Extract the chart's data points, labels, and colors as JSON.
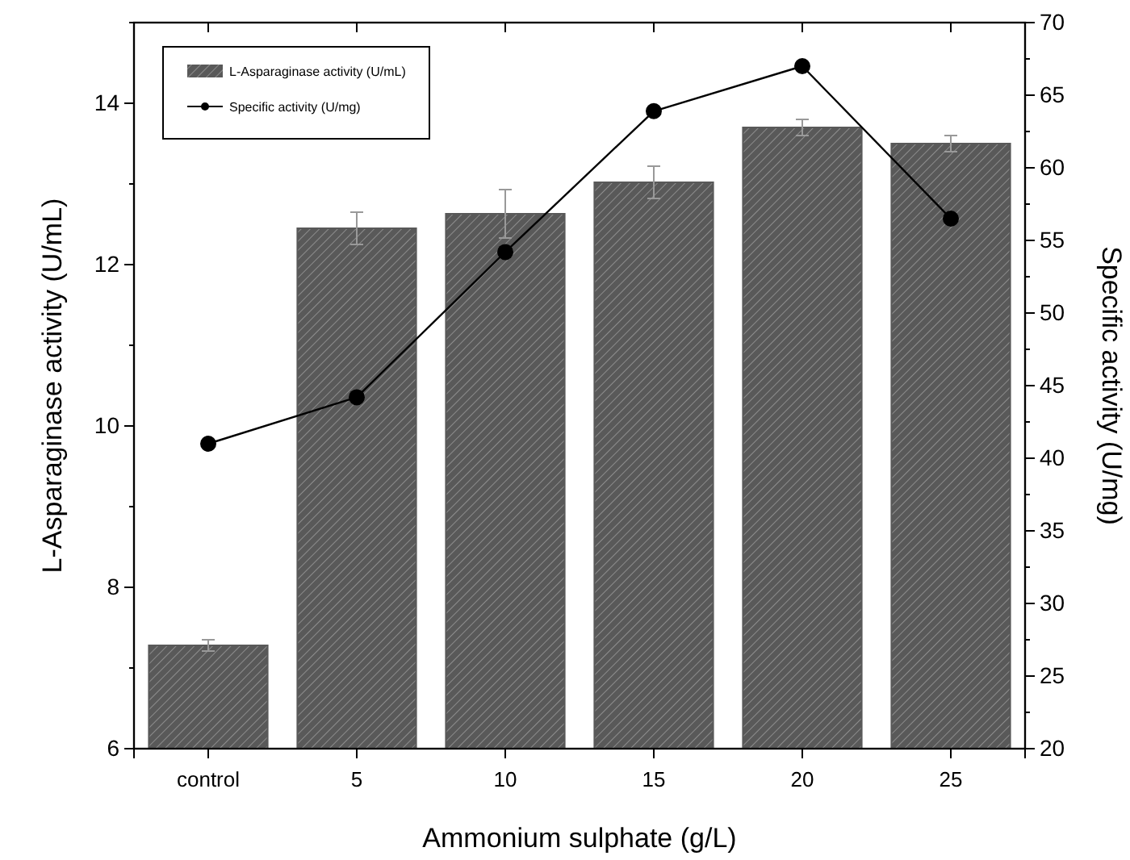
{
  "chart_data": {
    "type": "bar",
    "xlabel": "Ammonium sulphate (g/L)",
    "ylabel": "L-Asparaginase activity (U/mL)",
    "y2label": "Specific activity (U/mg)",
    "categories": [
      "control",
      "5",
      "10",
      "15",
      "20",
      "25"
    ],
    "series": [
      {
        "name": "L-Asparaginase activity (U/mL)",
        "color": "#595959",
        "values": [
          7.28,
          12.45,
          12.63,
          13.02,
          13.7,
          13.5
        ],
        "errors": [
          0.07,
          0.2,
          0.3,
          0.2,
          0.1,
          0.1
        ]
      },
      {
        "name": "Specific activity (U/mg)",
        "type": "line",
        "axis": "y2",
        "color": "#000000",
        "marker": "circle",
        "values": [
          41,
          44.2,
          54.2,
          63.9,
          67,
          56.5
        ]
      }
    ],
    "ylim": [
      6,
      15
    ],
    "yticks": [
      6,
      {
        "value": 7,
        "label": null
      },
      8,
      {
        "value": 9,
        "label": null
      },
      10,
      {
        "value": 11,
        "label": null
      },
      12,
      {
        "value": 13,
        "label": null
      },
      14,
      {
        "value": 15,
        "label": null
      }
    ],
    "y2lim": [
      20,
      70
    ],
    "y2ticks": [
      20,
      {
        "value": 22.5,
        "label": null
      },
      25,
      {
        "value": 27.5,
        "label": null
      },
      30,
      {
        "value": 32.5,
        "label": null
      },
      35,
      {
        "value": 37.5,
        "label": null
      },
      40,
      {
        "value": 42.5,
        "label": null
      },
      45,
      {
        "value": 47.5,
        "label": null
      },
      50,
      {
        "value": 52.5,
        "label": null
      },
      55,
      {
        "value": 57.5,
        "label": null
      },
      60,
      {
        "value": 62.5,
        "label": null
      },
      65,
      {
        "value": 67.5,
        "label": null
      },
      70
    ],
    "legend": "top left",
    "grid": false
  }
}
